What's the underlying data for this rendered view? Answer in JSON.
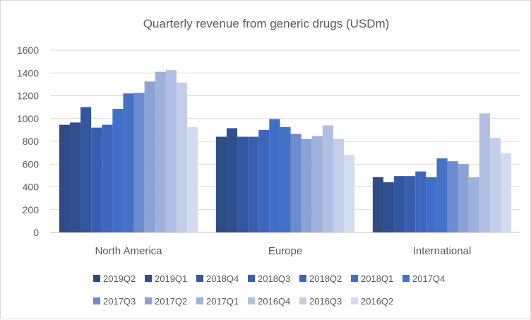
{
  "chart_data": {
    "type": "bar",
    "title": "Quarterly revenue from generic drugs (USDm)",
    "xlabel": "",
    "ylabel": "",
    "ylim": [
      0,
      1600
    ],
    "yticks": [
      0,
      200,
      400,
      600,
      800,
      1000,
      1200,
      1400,
      1600
    ],
    "grid": true,
    "legend_position": "bottom",
    "categories": [
      "North America",
      "Europe",
      "International"
    ],
    "series": [
      {
        "name": "2019Q2",
        "color": "#2f4b83",
        "values": [
          945,
          840,
          485
        ]
      },
      {
        "name": "2019Q1",
        "color": "#2f4f8f",
        "values": [
          965,
          915,
          440
        ]
      },
      {
        "name": "2018Q4",
        "color": "#3356a0",
        "values": [
          1100,
          840,
          495
        ]
      },
      {
        "name": "2018Q3",
        "color": "#3a5eaf",
        "values": [
          920,
          840,
          495
        ]
      },
      {
        "name": "2018Q2",
        "color": "#3d66bd",
        "values": [
          945,
          900,
          535
        ]
      },
      {
        "name": "2018Q1",
        "color": "#416ec8",
        "values": [
          1085,
          995,
          485
        ]
      },
      {
        "name": "2017Q4",
        "color": "#4472c4",
        "values": [
          1220,
          925,
          650
        ]
      },
      {
        "name": "2017Q3",
        "color": "#6c8ccf",
        "values": [
          1225,
          865,
          625
        ]
      },
      {
        "name": "2017Q2",
        "color": "#8aa2d6",
        "values": [
          1325,
          820,
          600
        ]
      },
      {
        "name": "2017Q1",
        "color": "#9fb2dc",
        "values": [
          1410,
          845,
          485
        ]
      },
      {
        "name": "2016Q4",
        "color": "#b0bfe2",
        "values": [
          1425,
          940,
          1045
        ]
      },
      {
        "name": "2016Q3",
        "color": "#c3cee9",
        "values": [
          1315,
          820,
          830
        ]
      },
      {
        "name": "2016Q2",
        "color": "#d2dbef",
        "values": [
          925,
          680,
          695
        ]
      }
    ]
  }
}
